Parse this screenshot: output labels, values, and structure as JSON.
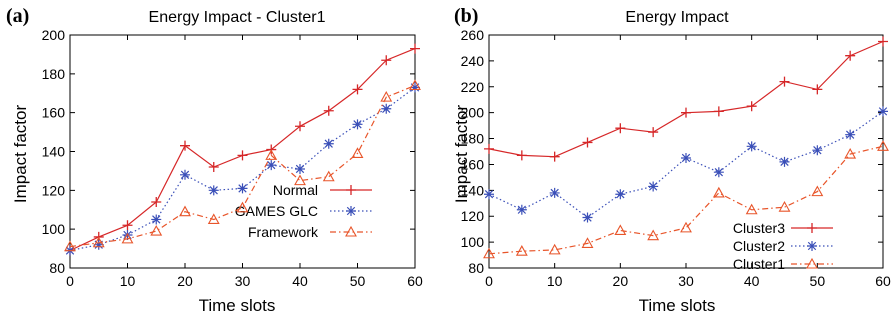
{
  "chart_data": [
    {
      "type": "line",
      "panel_label": "(a)",
      "title": "Energy Impact - Cluster1",
      "xlabel": "Time slots",
      "ylabel": "Impact factor",
      "xlim": [
        0,
        60
      ],
      "ylim": [
        80,
        200
      ],
      "xticks": [
        0,
        10,
        20,
        30,
        40,
        50,
        60
      ],
      "yticks": [
        80,
        100,
        120,
        140,
        160,
        180,
        200
      ],
      "grid": false,
      "legend_position": "bottom-right",
      "x": [
        0,
        5,
        10,
        15,
        20,
        25,
        30,
        35,
        40,
        45,
        50,
        55,
        60
      ],
      "series": [
        {
          "name": "Normal",
          "color": "#d62728",
          "marker": "plus",
          "dash": "solid",
          "values": [
            89,
            96,
            102,
            114,
            143,
            132,
            138,
            141,
            153,
            161,
            172,
            187,
            193
          ]
        },
        {
          "name": "GAMES GLC",
          "color": "#3a4fb8",
          "marker": "asterisk",
          "dash": "dotted",
          "values": [
            89,
            92,
            97,
            105,
            128,
            120,
            121,
            133,
            131,
            144,
            154,
            162,
            173
          ]
        },
        {
          "name": "Framework",
          "color": "#e8552a",
          "marker": "triangle",
          "dash": "dashdot",
          "values": [
            91,
            93,
            95,
            99,
            109,
            105,
            111,
            138,
            125,
            127,
            139,
            168,
            174
          ]
        }
      ]
    },
    {
      "type": "line",
      "panel_label": "(b)",
      "title": "Energy Impact",
      "xlabel": "Time slots",
      "ylabel": "Impact factor",
      "xlim": [
        0,
        60
      ],
      "ylim": [
        80,
        260
      ],
      "xticks": [
        0,
        10,
        20,
        30,
        40,
        50,
        60
      ],
      "yticks": [
        80,
        100,
        120,
        140,
        160,
        180,
        200,
        220,
        240,
        260
      ],
      "grid": false,
      "legend_position": "bottom-right",
      "x": [
        0,
        5,
        10,
        15,
        20,
        25,
        30,
        35,
        40,
        45,
        50,
        55,
        60
      ],
      "series": [
        {
          "name": "Cluster3",
          "color": "#d62728",
          "marker": "plus",
          "dash": "solid",
          "values": [
            172,
            167,
            166,
            177,
            188,
            185,
            200,
            201,
            205,
            224,
            218,
            244,
            255
          ]
        },
        {
          "name": "Cluster2",
          "color": "#3a4fb8",
          "marker": "asterisk",
          "dash": "dotted",
          "values": [
            137,
            125,
            138,
            119,
            137,
            143,
            165,
            154,
            174,
            162,
            171,
            183,
            201
          ]
        },
        {
          "name": "Cluster1",
          "color": "#e8552a",
          "marker": "triangle",
          "dash": "dashdot",
          "values": [
            91,
            93,
            94,
            99,
            109,
            105,
            111,
            138,
            125,
            127,
            139,
            168,
            174
          ]
        }
      ]
    }
  ]
}
